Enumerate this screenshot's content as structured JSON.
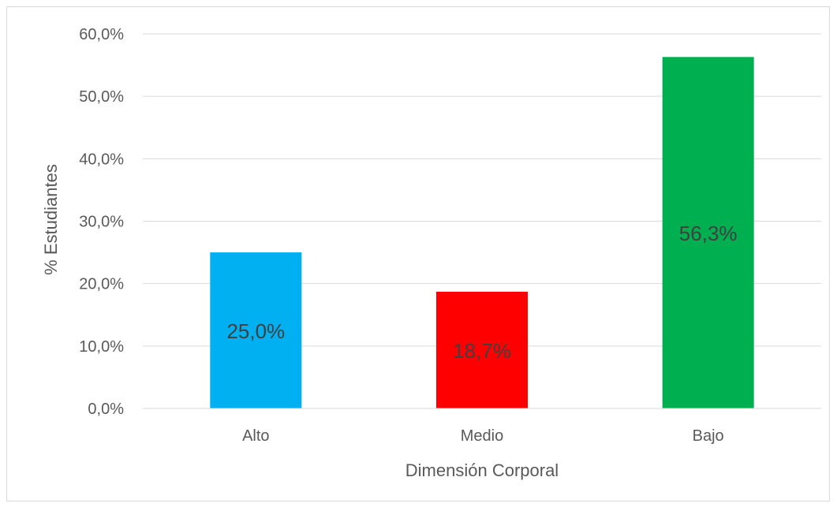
{
  "chart_data": {
    "type": "bar",
    "title": "",
    "xlabel": "Dimensión Corporal",
    "ylabel": "% Estudiantes",
    "categories": [
      "Alto",
      "Medio",
      "Bajo"
    ],
    "values": [
      25.0,
      18.7,
      56.3
    ],
    "value_labels": [
      "25,0%",
      "18,7%",
      "56,3%"
    ],
    "bar_colors": [
      "#00b0f0",
      "#ff0000",
      "#00b050"
    ],
    "ylim": [
      0,
      60
    ],
    "yticks": [
      0,
      10,
      20,
      30,
      40,
      50,
      60
    ],
    "ytick_labels": [
      "0,0%",
      "10,0%",
      "20,0%",
      "30,0%",
      "40,0%",
      "50,0%",
      "60,0%"
    ],
    "grid": true,
    "gridline_color": "#d9d9d9",
    "legend": "none"
  }
}
